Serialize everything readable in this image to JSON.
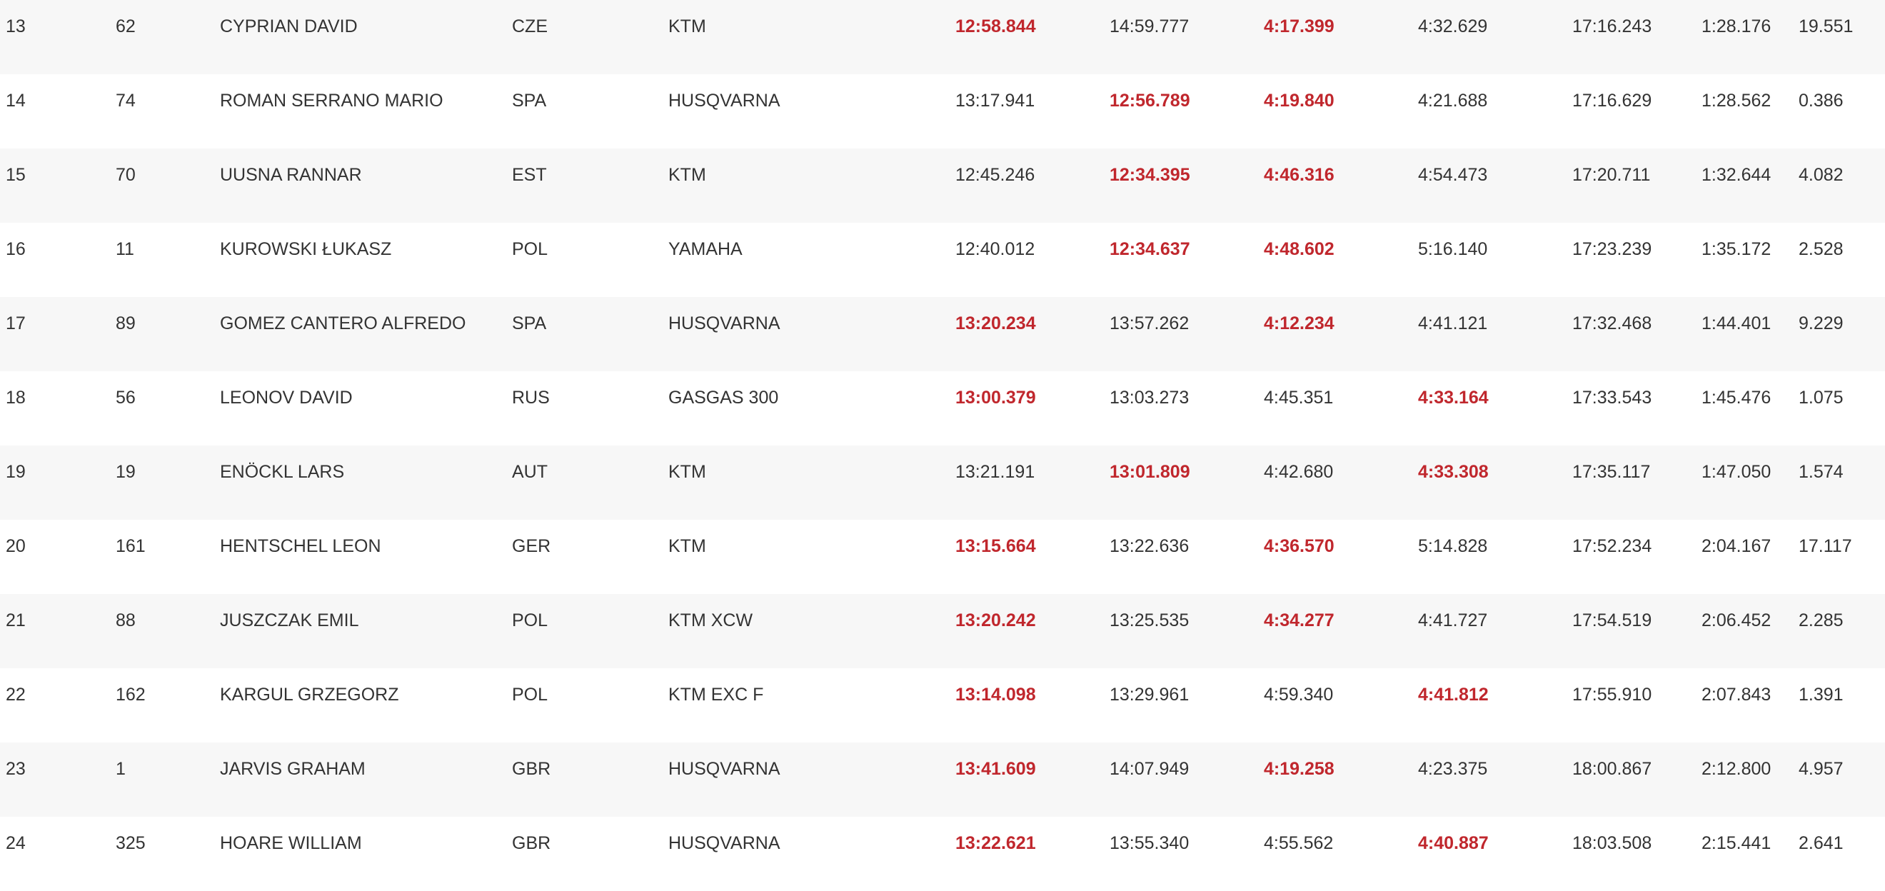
{
  "colors": {
    "best_time": "#c0272d",
    "text": "#333333",
    "row_alt": "#f7f7f7",
    "row_plain": "#ffffff"
  },
  "rows": [
    {
      "pos": "13",
      "num": "62",
      "name": "CYPRIAN DAVID",
      "nat": "CZE",
      "bike": "KTM",
      "t1": "12:58.844",
      "t2": "14:59.777",
      "t3": "4:17.399",
      "t4": "4:32.629",
      "total": "17:16.243",
      "gap": "1:28.176",
      "diff": "19.551",
      "best": [
        true,
        false,
        true,
        false
      ]
    },
    {
      "pos": "14",
      "num": "74",
      "name": "ROMAN SERRANO MARIO",
      "nat": "SPA",
      "bike": "HUSQVARNA",
      "t1": "13:17.941",
      "t2": "12:56.789",
      "t3": "4:19.840",
      "t4": "4:21.688",
      "total": "17:16.629",
      "gap": "1:28.562",
      "diff": "0.386",
      "best": [
        false,
        true,
        true,
        false
      ]
    },
    {
      "pos": "15",
      "num": "70",
      "name": "UUSNA RANNAR",
      "nat": "EST",
      "bike": "KTM",
      "t1": "12:45.246",
      "t2": "12:34.395",
      "t3": "4:46.316",
      "t4": "4:54.473",
      "total": "17:20.711",
      "gap": "1:32.644",
      "diff": "4.082",
      "best": [
        false,
        true,
        true,
        false
      ]
    },
    {
      "pos": "16",
      "num": "11",
      "name": "KUROWSKI ŁUKASZ",
      "nat": "POL",
      "bike": "YAMAHA",
      "t1": "12:40.012",
      "t2": "12:34.637",
      "t3": "4:48.602",
      "t4": "5:16.140",
      "total": "17:23.239",
      "gap": "1:35.172",
      "diff": "2.528",
      "best": [
        false,
        true,
        true,
        false
      ]
    },
    {
      "pos": "17",
      "num": "89",
      "name": "GOMEZ CANTERO ALFREDO",
      "nat": "SPA",
      "bike": "HUSQVARNA",
      "t1": "13:20.234",
      "t2": "13:57.262",
      "t3": "4:12.234",
      "t4": "4:41.121",
      "total": "17:32.468",
      "gap": "1:44.401",
      "diff": "9.229",
      "best": [
        true,
        false,
        true,
        false
      ]
    },
    {
      "pos": "18",
      "num": "56",
      "name": "LEONOV DAVID",
      "nat": "RUS",
      "bike": "GASGAS 300",
      "t1": "13:00.379",
      "t2": "13:03.273",
      "t3": "4:45.351",
      "t4": "4:33.164",
      "total": "17:33.543",
      "gap": "1:45.476",
      "diff": "1.075",
      "best": [
        true,
        false,
        false,
        true
      ]
    },
    {
      "pos": "19",
      "num": "19",
      "name": "ENÖCKL LARS",
      "nat": "AUT",
      "bike": "KTM",
      "t1": "13:21.191",
      "t2": "13:01.809",
      "t3": "4:42.680",
      "t4": "4:33.308",
      "total": "17:35.117",
      "gap": "1:47.050",
      "diff": "1.574",
      "best": [
        false,
        true,
        false,
        true
      ]
    },
    {
      "pos": "20",
      "num": "161",
      "name": "HENTSCHEL LEON",
      "nat": "GER",
      "bike": "KTM",
      "t1": "13:15.664",
      "t2": "13:22.636",
      "t3": "4:36.570",
      "t4": "5:14.828",
      "total": "17:52.234",
      "gap": "2:04.167",
      "diff": "17.117",
      "best": [
        true,
        false,
        true,
        false
      ]
    },
    {
      "pos": "21",
      "num": "88",
      "name": "JUSZCZAK EMIL",
      "nat": "POL",
      "bike": "KTM XCW",
      "t1": "13:20.242",
      "t2": "13:25.535",
      "t3": "4:34.277",
      "t4": "4:41.727",
      "total": "17:54.519",
      "gap": "2:06.452",
      "diff": "2.285",
      "best": [
        true,
        false,
        true,
        false
      ]
    },
    {
      "pos": "22",
      "num": "162",
      "name": "KARGUL GRZEGORZ",
      "nat": "POL",
      "bike": "KTM EXC F",
      "t1": "13:14.098",
      "t2": "13:29.961",
      "t3": "4:59.340",
      "t4": "4:41.812",
      "total": "17:55.910",
      "gap": "2:07.843",
      "diff": "1.391",
      "best": [
        true,
        false,
        false,
        true
      ]
    },
    {
      "pos": "23",
      "num": "1",
      "name": "JARVIS GRAHAM",
      "nat": "GBR",
      "bike": "HUSQVARNA",
      "t1": "13:41.609",
      "t2": "14:07.949",
      "t3": "4:19.258",
      "t4": "4:23.375",
      "total": "18:00.867",
      "gap": "2:12.800",
      "diff": "4.957",
      "best": [
        true,
        false,
        true,
        false
      ]
    },
    {
      "pos": "24",
      "num": "325",
      "name": "HOARE WILLIAM",
      "nat": "GBR",
      "bike": "HUSQVARNA",
      "t1": "13:22.621",
      "t2": "13:55.340",
      "t3": "4:55.562",
      "t4": "4:40.887",
      "total": "18:03.508",
      "gap": "2:15.441",
      "diff": "2.641",
      "best": [
        true,
        false,
        false,
        true
      ]
    }
  ]
}
